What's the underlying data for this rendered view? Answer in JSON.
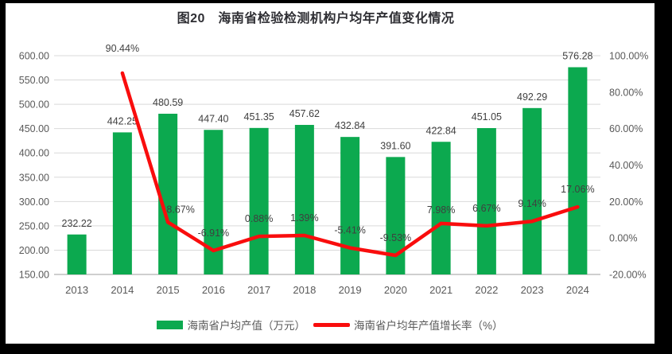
{
  "window": {
    "background": "#000000",
    "panel_background": "#FFFFFF"
  },
  "title": "图20　海南省检验检测机构户均年产值变化情况",
  "chart_data": {
    "type": "bar+line",
    "title": "图20　海南省检验检测机构户均年产值变化情况",
    "categories": [
      "2013",
      "2014",
      "2015",
      "2016",
      "2017",
      "2018",
      "2019",
      "2020",
      "2021",
      "2022",
      "2023",
      "2024"
    ],
    "series": [
      {
        "name": "海南省户均产值（万元）",
        "type": "bar",
        "axis": "left",
        "color": "#0CA94F",
        "values": [
          232.22,
          442.25,
          480.59,
          447.4,
          451.35,
          457.62,
          432.84,
          391.6,
          422.84,
          451.05,
          492.29,
          576.28
        ]
      },
      {
        "name": "海南省户均年产值增长率（%）",
        "type": "line",
        "axis": "right",
        "color": "#F90D0D",
        "values": [
          null,
          90.44,
          8.67,
          -6.91,
          0.88,
          1.39,
          -5.41,
          -9.53,
          7.98,
          6.67,
          9.14,
          17.06
        ]
      }
    ],
    "left_axis": {
      "min": 150,
      "max": 600,
      "step": 50,
      "tick_labels": [
        "150.00",
        "200.00",
        "250.00",
        "300.00",
        "350.00",
        "400.00",
        "450.00",
        "500.00",
        "550.00",
        "600.00"
      ]
    },
    "right_axis": {
      "min": -20,
      "max": 100,
      "step": 20,
      "tick_labels": [
        "-20.00%",
        "0.00%",
        "20.00%",
        "40.00%",
        "60.00%",
        "80.00%",
        "100.00%"
      ]
    },
    "grid": true,
    "gridline_color": "#D9D9D9",
    "axis_line_color": "#BFBFBF",
    "tick_label_color": "#595959",
    "data_label_color": "#3F3F3F",
    "legend_position": "bottom",
    "line_label_offsets": {
      "1": [
        0,
        -27
      ],
      "2": [
        16,
        -12
      ],
      "8": [
        0,
        -13
      ]
    }
  }
}
